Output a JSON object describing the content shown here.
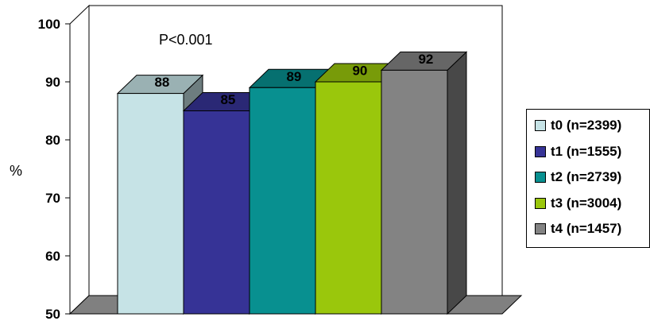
{
  "chart_data": {
    "type": "bar",
    "title": "",
    "xlabel": "",
    "ylabel": "%",
    "ylim": [
      50,
      100
    ],
    "yticks": [
      50,
      60,
      70,
      80,
      90,
      100
    ],
    "annotation": "P<0.001",
    "series": [
      {
        "name": "t0 (n=2399)",
        "value": 88,
        "color": "#c6e3e6"
      },
      {
        "name": "t1 (n=1555)",
        "value": 85,
        "color": "#363396"
      },
      {
        "name": "t2 (n=2739)",
        "value": 89,
        "color": "#089090"
      },
      {
        "name": "t3 (n=3004)",
        "value": 90,
        "color": "#9ac70c"
      },
      {
        "name": "t4 (n=1457)",
        "value": 92,
        "color": "#838383"
      }
    ],
    "legend_position": "right"
  }
}
